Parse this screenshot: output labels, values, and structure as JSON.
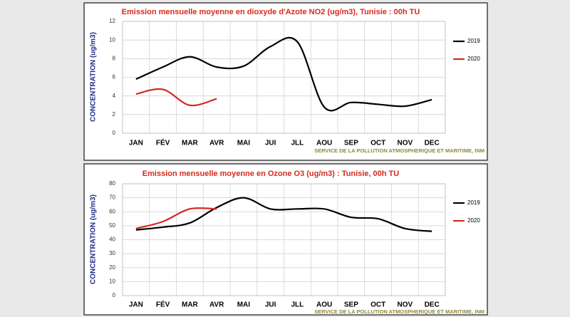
{
  "chart_data": [
    {
      "type": "line",
      "title": "Emission mensuelle moyenne en dioxyde d'Azote NO2 (ug/m3), Tunisie : 00h TU",
      "y_label": "CONCENTRATION (ug/m3)",
      "source": "SERVICE DE LA POLLUTION ATMOSPHERIQUE ET MARITIME, INM",
      "categories": [
        "JAN",
        "FÉV",
        "MAR",
        "AVR",
        "MAI",
        "JUI",
        "JLL",
        "AOU",
        "SEP",
        "OCT",
        "NOV",
        "DEC"
      ],
      "series": [
        {
          "name": "2019",
          "color": "#000000",
          "values": [
            5.8,
            7.1,
            8.2,
            7.1,
            7.2,
            9.3,
            9.8,
            2.8,
            3.3,
            3.1,
            2.9,
            3.6
          ]
        },
        {
          "name": "2020",
          "color": "#d62a1e",
          "values": [
            4.2,
            4.7,
            3.0,
            3.7,
            null,
            null,
            null,
            null,
            null,
            null,
            null,
            null
          ]
        }
      ],
      "ylim": [
        0,
        12
      ],
      "yticks": [
        0,
        2,
        4,
        6,
        8,
        10,
        12
      ],
      "grid": true
    },
    {
      "type": "line",
      "title": "Emission mensuelle moyenne en Ozone O3 (ug/m3) : Tunisie, 00h TU",
      "y_label": "CONCENTRATION (ug/m3)",
      "source": "SERVICE DE LA POLLUTION ATMOSPHERIQUE ET MARITIME, INM",
      "categories": [
        "JAN",
        "FÉV",
        "MAR",
        "AVR",
        "MAI",
        "JUI",
        "JLL",
        "AOU",
        "SEP",
        "OCT",
        "NOV",
        "DEC"
      ],
      "series": [
        {
          "name": "2019",
          "color": "#000000",
          "values": [
            47,
            49,
            52,
            63,
            70,
            62,
            62,
            62,
            56,
            55,
            48,
            46
          ]
        },
        {
          "name": "2020",
          "color": "#d62a1e",
          "values": [
            48,
            53,
            62,
            62,
            null,
            null,
            null,
            null,
            null,
            null,
            null,
            null
          ]
        }
      ],
      "ylim": [
        0,
        80
      ],
      "yticks": [
        0,
        10,
        20,
        30,
        40,
        50,
        60,
        70,
        80
      ],
      "grid": true
    }
  ]
}
